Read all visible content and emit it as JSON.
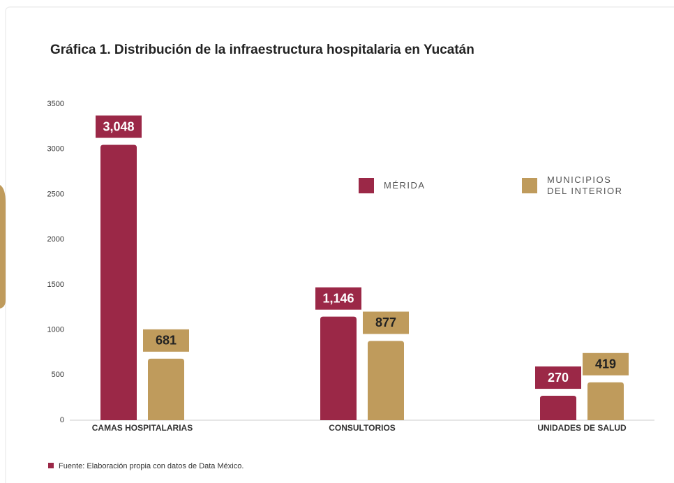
{
  "chart_data": {
    "type": "bar",
    "title": "Gráfica 1. Distribución de la infraestructura hospitalaria en Yucatán",
    "categories": [
      "CAMAS HOSPITALARIAS",
      "CONSULTORIOS",
      "UNIDADES DE SALUD"
    ],
    "series": [
      {
        "name": "MÉRIDA",
        "color": "#9b2847",
        "values": [
          3048,
          1146,
          270
        ],
        "value_labels": [
          "3,048",
          "1,146",
          "270"
        ]
      },
      {
        "name": "MUNICIPIOS DEL INTERIOR",
        "color": "#bf9b5c",
        "values": [
          681,
          877,
          419
        ],
        "value_labels": [
          "681",
          "877",
          "419"
        ]
      }
    ],
    "ylim": [
      0,
      3500
    ],
    "yticks": [
      0,
      500,
      1000,
      1500,
      2000,
      2500,
      3000,
      3500
    ],
    "note": "Fuente: Elaboración propia con datos de Data México."
  }
}
